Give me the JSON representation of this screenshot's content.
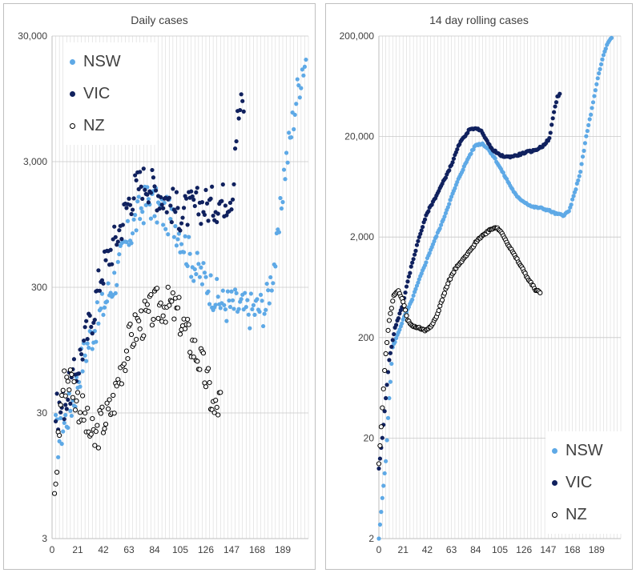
{
  "colors": {
    "NSW": "#5ea9e6",
    "VIC": "#10215e",
    "NZ": "#000000",
    "grid": "#d9d9d9"
  },
  "chart_data": [
    {
      "type": "scatter",
      "title": "Daily cases",
      "y_scale": "log",
      "ylim": [
        3,
        30000
      ],
      "xlim": [
        0,
        210
      ],
      "y_ticks": [
        3,
        30,
        300,
        3000,
        30000
      ],
      "y_tick_labels": [
        "3",
        "30",
        "300",
        "3,000",
        "30,000"
      ],
      "x_ticks": [
        0,
        21,
        42,
        63,
        84,
        105,
        126,
        147,
        168,
        189
      ],
      "x_tick_labels": [
        "0",
        "21",
        "42",
        "63",
        "84",
        "105",
        "126",
        "147",
        "168",
        "189"
      ],
      "grid": true,
      "legend_position": "top-left",
      "legend": [
        "NSW",
        "VIC",
        "NZ"
      ],
      "series": [
        {
          "name": "NSW",
          "anchors": [
            [
              3,
              22
            ],
            [
              5,
              18
            ],
            [
              10,
              25
            ],
            [
              18,
              40
            ],
            [
              24,
              75
            ],
            [
              30,
              110
            ],
            [
              38,
              170
            ],
            [
              45,
              250
            ],
            [
              53,
              380
            ],
            [
              60,
              650
            ],
            [
              66,
              900
            ],
            [
              72,
              1200
            ],
            [
              78,
              1500
            ],
            [
              84,
              1350
            ],
            [
              90,
              1200
            ],
            [
              95,
              1100
            ],
            [
              100,
              1000
            ],
            [
              105,
              800
            ],
            [
              112,
              550
            ],
            [
              118,
              420
            ],
            [
              126,
              340
            ],
            [
              135,
              250
            ],
            [
              140,
              220
            ],
            [
              150,
              215
            ],
            [
              160,
              195
            ],
            [
              168,
              205
            ],
            [
              175,
              210
            ],
            [
              185,
              650
            ],
            [
              190,
              2400
            ],
            [
              195,
              4500
            ],
            [
              200,
              9500
            ],
            [
              205,
              17000
            ],
            [
              208,
              20000
            ]
          ]
        },
        {
          "name": "VIC",
          "anchors": [
            [
              3,
              30
            ],
            [
              8,
              33
            ],
            [
              14,
              45
            ],
            [
              20,
              65
            ],
            [
              25,
              100
            ],
            [
              32,
              160
            ],
            [
              40,
              380
            ],
            [
              47,
              550
            ],
            [
              55,
              850
            ],
            [
              62,
              1400
            ],
            [
              68,
              1800
            ],
            [
              74,
              2100
            ],
            [
              80,
              2000
            ],
            [
              87,
              1700
            ],
            [
              94,
              1500
            ],
            [
              100,
              1300
            ],
            [
              106,
              1150
            ],
            [
              112,
              1250
            ],
            [
              120,
              1350
            ],
            [
              128,
              1350
            ],
            [
              135,
              1400
            ],
            [
              140,
              1500
            ],
            [
              145,
              1600
            ],
            [
              148,
              1750
            ],
            [
              150,
              4200
            ],
            [
              152,
              6300
            ],
            [
              154,
              7900
            ],
            [
              157,
              8600
            ]
          ]
        },
        {
          "name": "NZ",
          "anchors": [
            [
              2,
              6
            ],
            [
              5,
              18
            ],
            [
              8,
              45
            ],
            [
              12,
              60
            ],
            [
              16,
              55
            ],
            [
              20,
              40
            ],
            [
              25,
              30
            ],
            [
              30,
              22
            ],
            [
              35,
              18
            ],
            [
              40,
              25
            ],
            [
              45,
              28
            ],
            [
              50,
              35
            ],
            [
              55,
              60
            ],
            [
              60,
              90
            ],
            [
              65,
              120
            ],
            [
              70,
              150
            ],
            [
              78,
              175
            ],
            [
              85,
              210
            ],
            [
              92,
              220
            ],
            [
              98,
              210
            ],
            [
              104,
              180
            ],
            [
              110,
              130
            ],
            [
              116,
              100
            ],
            [
              122,
              75
            ],
            [
              128,
              50
            ],
            [
              133,
              30
            ],
            [
              138,
              38
            ]
          ]
        }
      ]
    },
    {
      "type": "scatter",
      "title": "14 day rolling cases",
      "y_scale": "log",
      "ylim": [
        2,
        200000
      ],
      "xlim": [
        0,
        210
      ],
      "y_ticks": [
        2,
        20,
        200,
        2000,
        20000,
        200000
      ],
      "y_tick_labels": [
        "2",
        "20",
        "200",
        "2,000",
        "20,000",
        "200,000"
      ],
      "x_ticks": [
        0,
        21,
        42,
        63,
        84,
        105,
        126,
        147,
        168,
        189
      ],
      "x_tick_labels": [
        "0",
        "21",
        "42",
        "63",
        "84",
        "105",
        "126",
        "147",
        "168",
        "189"
      ],
      "grid": true,
      "legend_position": "bottom-right",
      "legend": [
        "NSW",
        "VIC",
        "NZ"
      ],
      "series": [
        {
          "name": "NSW",
          "anchors": [
            [
              0,
              2
            ],
            [
              3,
              5
            ],
            [
              6,
              12
            ],
            [
              9,
              50
            ],
            [
              12,
              160
            ],
            [
              16,
              210
            ],
            [
              21,
              300
            ],
            [
              28,
              450
            ],
            [
              35,
              750
            ],
            [
              45,
              1500
            ],
            [
              55,
              2800
            ],
            [
              63,
              5000
            ],
            [
              70,
              8000
            ],
            [
              78,
              12500
            ],
            [
              84,
              16500
            ],
            [
              90,
              17000
            ],
            [
              95,
              15000
            ],
            [
              100,
              12500
            ],
            [
              107,
              9000
            ],
            [
              114,
              6500
            ],
            [
              120,
              5000
            ],
            [
              126,
              4500
            ],
            [
              133,
              4000
            ],
            [
              140,
              3900
            ],
            [
              147,
              3700
            ],
            [
              154,
              3400
            ],
            [
              160,
              3300
            ],
            [
              165,
              3600
            ],
            [
              170,
              5500
            ],
            [
              175,
              9000
            ],
            [
              180,
              20000
            ],
            [
              185,
              38000
            ],
            [
              190,
              75000
            ],
            [
              195,
              130000
            ],
            [
              199,
              175000
            ],
            [
              202,
              190000
            ]
          ]
        },
        {
          "name": "VIC",
          "anchors": [
            [
              0,
              10
            ],
            [
              3,
              20
            ],
            [
              6,
              50
            ],
            [
              9,
              120
            ],
            [
              14,
              250
            ],
            [
              20,
              400
            ],
            [
              28,
              1000
            ],
            [
              35,
              2000
            ],
            [
              42,
              3500
            ],
            [
              50,
              5200
            ],
            [
              57,
              7500
            ],
            [
              63,
              10500
            ],
            [
              70,
              17000
            ],
            [
              78,
              23000
            ],
            [
              84,
              24500
            ],
            [
              90,
              22000
            ],
            [
              97,
              15500
            ],
            [
              105,
              13000
            ],
            [
              112,
              12500
            ],
            [
              120,
              13000
            ],
            [
              128,
              14000
            ],
            [
              135,
              14500
            ],
            [
              142,
              16000
            ],
            [
              148,
              19000
            ],
            [
              152,
              35000
            ],
            [
              155,
              50000
            ],
            [
              157,
              53000
            ]
          ]
        },
        {
          "name": "NZ",
          "anchors": [
            [
              0,
              11
            ],
            [
              3,
              40
            ],
            [
              6,
              140
            ],
            [
              9,
              300
            ],
            [
              13,
              520
            ],
            [
              17,
              580
            ],
            [
              21,
              460
            ],
            [
              25,
              300
            ],
            [
              29,
              260
            ],
            [
              35,
              250
            ],
            [
              40,
              235
            ],
            [
              45,
              260
            ],
            [
              50,
              320
            ],
            [
              55,
              480
            ],
            [
              60,
              700
            ],
            [
              66,
              950
            ],
            [
              72,
              1150
            ],
            [
              80,
              1500
            ],
            [
              86,
              1900
            ],
            [
              92,
              2150
            ],
            [
              97,
              2400
            ],
            [
              102,
              2500
            ],
            [
              107,
              2200
            ],
            [
              112,
              1700
            ],
            [
              118,
              1300
            ],
            [
              124,
              1000
            ],
            [
              130,
              750
            ],
            [
              136,
              600
            ],
            [
              140,
              560
            ]
          ]
        }
      ]
    }
  ]
}
